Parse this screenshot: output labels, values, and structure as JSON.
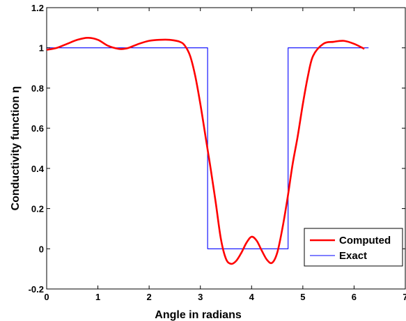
{
  "chart_data": {
    "type": "line",
    "title": "",
    "xlabel": "Angle in radians",
    "ylabel": "Conductivity function η",
    "xlim": [
      0,
      7
    ],
    "ylim": [
      -0.2,
      1.2
    ],
    "xticks": [
      "0",
      "1",
      "2",
      "3",
      "4",
      "5",
      "6",
      "7"
    ],
    "yticks": [
      "-0.2",
      "0",
      "0.2",
      "0.4",
      "0.6",
      "0.8",
      "1",
      "1.2"
    ],
    "xtick_values": [
      0,
      1,
      2,
      3,
      4,
      5,
      6,
      7
    ],
    "ytick_values": [
      -0.2,
      0,
      0.2,
      0.4,
      0.6,
      0.8,
      1,
      1.2
    ],
    "grid": false,
    "legend_position": "bottom-right",
    "series": [
      {
        "name": "Computed",
        "color": "#ff0000",
        "x": [
          0,
          0.2,
          0.4,
          0.6,
          0.8,
          1.0,
          1.2,
          1.4,
          1.5,
          1.6,
          1.8,
          2.0,
          2.2,
          2.4,
          2.6,
          2.7,
          2.8,
          2.9,
          3.0,
          3.1,
          3.15,
          3.2,
          3.3,
          3.4,
          3.5,
          3.6,
          3.7,
          3.8,
          3.9,
          4.0,
          4.1,
          4.2,
          4.3,
          4.4,
          4.5,
          4.6,
          4.7,
          4.8,
          4.9,
          5.0,
          5.1,
          5.2,
          5.4,
          5.6,
          5.8,
          6.0,
          6.2
        ],
        "y": [
          0.99,
          1.0,
          1.02,
          1.04,
          1.05,
          1.04,
          1.01,
          0.995,
          0.995,
          1.0,
          1.02,
          1.035,
          1.04,
          1.04,
          1.03,
          1.01,
          0.96,
          0.86,
          0.72,
          0.56,
          0.48,
          0.4,
          0.23,
          0.05,
          -0.05,
          -0.075,
          -0.06,
          -0.02,
          0.03,
          0.06,
          0.04,
          -0.01,
          -0.055,
          -0.07,
          -0.02,
          0.1,
          0.25,
          0.42,
          0.56,
          0.72,
          0.86,
          0.96,
          1.02,
          1.03,
          1.035,
          1.02,
          0.995
        ]
      },
      {
        "name": "Exact",
        "color": "#0000ff",
        "x": [
          0,
          3.1416,
          3.1416,
          4.7124,
          4.7124,
          6.2832
        ],
        "y": [
          1,
          1,
          0,
          0,
          1,
          1
        ]
      }
    ]
  }
}
